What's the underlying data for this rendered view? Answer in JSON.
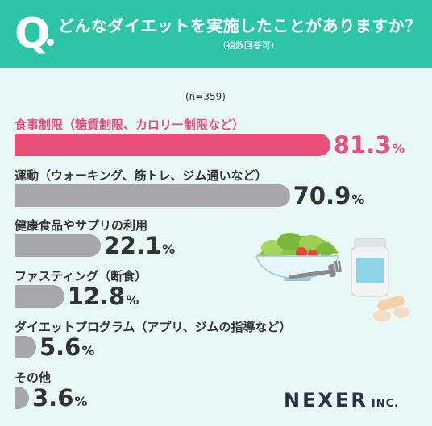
{
  "header": {
    "q": "Q",
    "title": "どんなダイエットを実施したことがありますか？",
    "subtitle": "（複数回答可）"
  },
  "sample_label": "(n=359)",
  "brand": {
    "name": "NEXER",
    "suffix": "INC."
  },
  "colors": {
    "header": "#2ec4a8",
    "background": "#e8f8f6",
    "highlight": "#e8507a",
    "bar": "#a6a6ab",
    "text": "#333333"
  },
  "chart_data": {
    "type": "bar",
    "orientation": "horizontal",
    "categories": [
      "食事制限（糖質制限、カロリー制限など）",
      "運動（ウォーキング、筋トレ、ジム通いなど）",
      "健康食品やサプリの利用",
      "ファスティング（断食）",
      "ダイエットプログラム（アプリ、ジムの指導など）",
      "その他"
    ],
    "values": [
      81.3,
      70.9,
      22.1,
      12.8,
      5.6,
      3.6
    ],
    "value_labels": [
      "81.3",
      "70.9",
      "22.1",
      "12.8",
      "5.6",
      "3.6"
    ],
    "unit": "%",
    "xlim": [
      0,
      100
    ],
    "highlight_index": 0
  }
}
